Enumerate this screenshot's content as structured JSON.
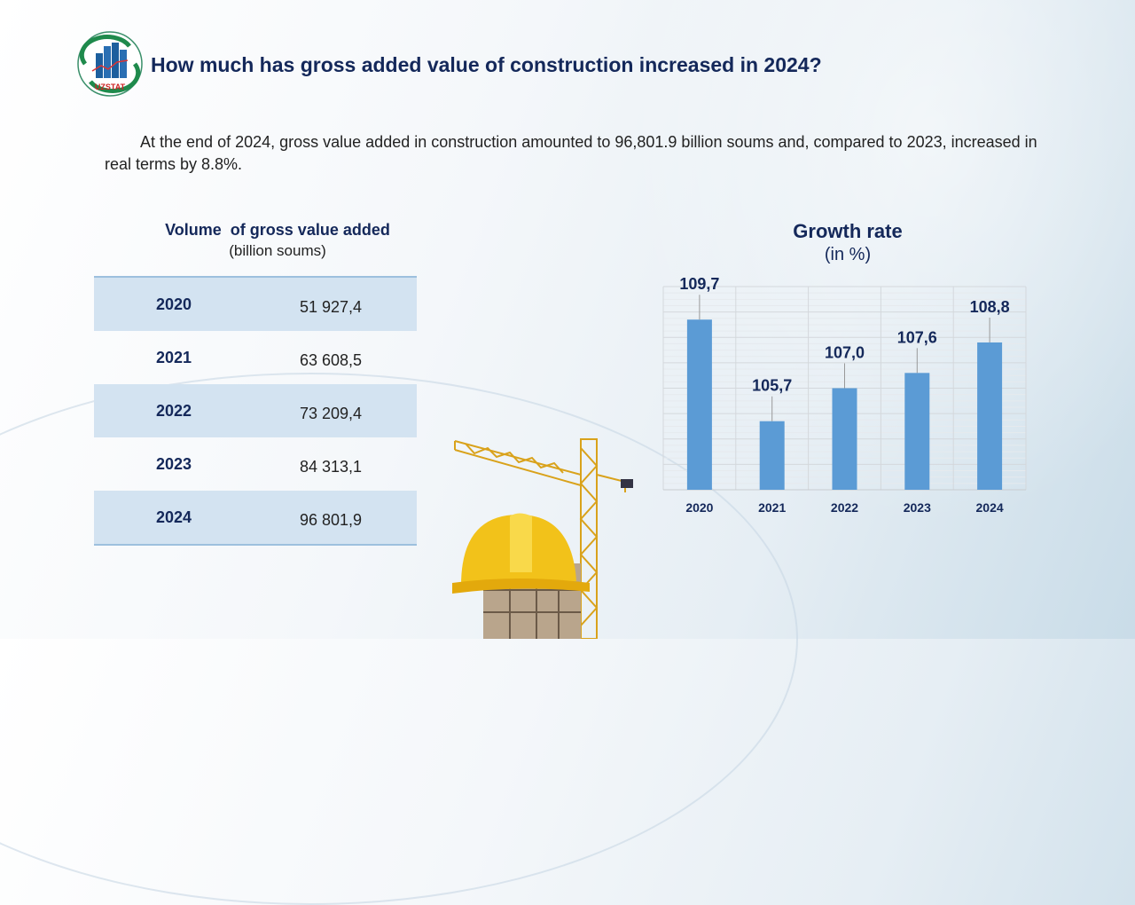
{
  "header": {
    "logo_text": "UZSTAT",
    "title": "How much has gross added value of construction increased in 2024?"
  },
  "intro": "At the end of 2024, gross value added in construction amounted to 96,801.9 billion soums and, compared to 2023, increased in real terms by 8.8%.",
  "table": {
    "title": "Volume  of gross value added",
    "subtitle": "(billion soums)",
    "rows": [
      {
        "year": "2020",
        "value": "51 927,4"
      },
      {
        "year": "2021",
        "value": "63 608,5"
      },
      {
        "year": "2022",
        "value": "73 209,4"
      },
      {
        "year": "2023",
        "value": "84 313,1"
      },
      {
        "year": "2024",
        "value": "96 801,9"
      }
    ]
  },
  "chart_data": {
    "type": "bar",
    "title": "Growth rate",
    "subtitle": "(in %)",
    "categories": [
      "2020",
      "2021",
      "2022",
      "2023",
      "2024"
    ],
    "values": [
      109.7,
      105.7,
      107.0,
      107.6,
      108.8
    ],
    "labels": [
      "109,7",
      "105,7",
      "107,0",
      "107,6",
      "108,8"
    ],
    "ylim": [
      103,
      111
    ],
    "grid": true,
    "color": "#5b9bd5"
  }
}
